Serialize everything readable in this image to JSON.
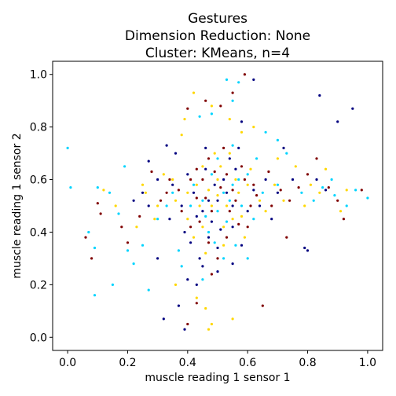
{
  "chart_data": {
    "type": "scatter",
    "title_lines": [
      "Gestures",
      "Dimension Reduction: None",
      "Cluster: KMeans, n=4"
    ],
    "xlabel": "muscle reading 1 sensor 1",
    "ylabel": "muscle reading 1 sensor 2",
    "xlim": [
      -0.05,
      1.05
    ],
    "ylim": [
      -0.05,
      1.05
    ],
    "xticks": [
      0.0,
      0.2,
      0.4,
      0.6,
      0.8,
      1.0
    ],
    "yticks": [
      0.0,
      0.2,
      0.4,
      0.6,
      0.8,
      1.0
    ],
    "xtick_labels": [
      "0.0",
      "0.2",
      "0.4",
      "0.6",
      "0.8",
      "1.0"
    ],
    "ytick_labels": [
      "0.0",
      "0.2",
      "0.4",
      "0.6",
      "0.8",
      "1.0"
    ],
    "grid": false,
    "legend": "none",
    "series": [
      {
        "color": "#000080",
        "points": [
          [
            0.5,
            0.52
          ],
          [
            0.45,
            0.48
          ],
          [
            0.42,
            0.55
          ],
          [
            0.55,
            0.5
          ],
          [
            0.48,
            0.44
          ],
          [
            0.4,
            0.62
          ],
          [
            0.52,
            0.6
          ],
          [
            0.6,
            0.48
          ],
          [
            0.38,
            0.5
          ],
          [
            0.47,
            0.38
          ],
          [
            0.55,
            0.42
          ],
          [
            0.35,
            0.58
          ],
          [
            0.62,
            0.56
          ],
          [
            0.44,
            0.3
          ],
          [
            0.5,
            0.25
          ],
          [
            0.43,
            0.2
          ],
          [
            0.3,
            0.3
          ],
          [
            0.32,
            0.07
          ],
          [
            0.39,
            0.03
          ],
          [
            0.84,
            0.92
          ],
          [
            0.95,
            0.87
          ],
          [
            0.9,
            0.82
          ],
          [
            0.72,
            0.72
          ],
          [
            0.8,
            0.33
          ],
          [
            0.79,
            0.34
          ],
          [
            0.3,
            0.6
          ],
          [
            0.25,
            0.55
          ],
          [
            0.7,
            0.55
          ],
          [
            0.75,
            0.6
          ],
          [
            0.36,
            0.7
          ],
          [
            0.46,
            0.72
          ],
          [
            0.57,
            0.72
          ],
          [
            0.58,
            0.35
          ],
          [
            0.41,
            0.36
          ],
          [
            0.53,
            0.55
          ],
          [
            0.49,
            0.58
          ],
          [
            0.47,
            0.52
          ],
          [
            0.43,
            0.46
          ],
          [
            0.56,
            0.64
          ],
          [
            0.34,
            0.45
          ],
          [
            0.64,
            0.5
          ],
          [
            0.27,
            0.5
          ],
          [
            0.66,
            0.6
          ],
          [
            0.68,
            0.45
          ],
          [
            0.51,
            0.41
          ],
          [
            0.45,
            0.27
          ],
          [
            0.4,
            0.22
          ],
          [
            0.37,
            0.12
          ],
          [
            0.58,
            0.82
          ],
          [
            0.62,
            0.98
          ],
          [
            0.33,
            0.73
          ],
          [
            0.27,
            0.67
          ],
          [
            0.22,
            0.52
          ],
          [
            0.86,
            0.56
          ],
          [
            0.83,
            0.6
          ],
          [
            0.55,
            0.28
          ],
          [
            0.5,
            0.34
          ],
          [
            0.46,
            0.64
          ],
          [
            0.54,
            0.68
          ],
          [
            0.39,
            0.4
          ]
        ]
      },
      {
        "color": "#00d4ff",
        "points": [
          [
            0.52,
            0.55
          ],
          [
            0.48,
            0.62
          ],
          [
            0.55,
            0.58
          ],
          [
            0.45,
            0.52
          ],
          [
            0.58,
            0.5
          ],
          [
            0.5,
            0.68
          ],
          [
            0.42,
            0.58
          ],
          [
            0.6,
            0.62
          ],
          [
            0.53,
            0.44
          ],
          [
            0.47,
            0.4
          ],
          [
            0.65,
            0.55
          ],
          [
            0.35,
            0.55
          ],
          [
            0.7,
            0.58
          ],
          [
            0.0,
            0.72
          ],
          [
            0.01,
            0.57
          ],
          [
            0.1,
            0.57
          ],
          [
            0.09,
            0.34
          ],
          [
            0.07,
            0.4
          ],
          [
            0.09,
            0.16
          ],
          [
            0.2,
            0.33
          ],
          [
            0.22,
            0.28
          ],
          [
            0.15,
            0.2
          ],
          [
            0.27,
            0.18
          ],
          [
            0.19,
            0.65
          ],
          [
            0.14,
            0.55
          ],
          [
            0.17,
            0.47
          ],
          [
            0.25,
            0.35
          ],
          [
            0.3,
            0.45
          ],
          [
            0.37,
            0.33
          ],
          [
            0.55,
            0.9
          ],
          [
            0.53,
            0.98
          ],
          [
            0.57,
            0.97
          ],
          [
            0.48,
            0.85
          ],
          [
            0.44,
            0.84
          ],
          [
            0.66,
            0.78
          ],
          [
            0.7,
            0.75
          ],
          [
            0.73,
            0.7
          ],
          [
            0.78,
            0.55
          ],
          [
            0.85,
            0.57
          ],
          [
            0.89,
            0.54
          ],
          [
            0.93,
            0.5
          ],
          [
            0.96,
            0.56
          ],
          [
            1.0,
            0.53
          ],
          [
            0.88,
            0.6
          ],
          [
            0.82,
            0.52
          ],
          [
            0.56,
            0.35
          ],
          [
            0.6,
            0.3
          ],
          [
            0.52,
            0.3
          ],
          [
            0.45,
            0.22
          ],
          [
            0.38,
            0.27
          ],
          [
            0.55,
            0.73
          ],
          [
            0.63,
            0.68
          ],
          [
            0.5,
            0.48
          ],
          [
            0.46,
            0.46
          ],
          [
            0.54,
            0.52
          ],
          [
            0.57,
            0.6
          ],
          [
            0.41,
            0.5
          ],
          [
            0.62,
            0.45
          ],
          [
            0.33,
            0.5
          ],
          [
            0.49,
            0.36
          ]
        ]
      },
      {
        "color": "#ffd700",
        "points": [
          [
            0.5,
            0.6
          ],
          [
            0.47,
            0.56
          ],
          [
            0.53,
            0.5
          ],
          [
            0.44,
            0.5
          ],
          [
            0.57,
            0.55
          ],
          [
            0.4,
            0.55
          ],
          [
            0.6,
            0.58
          ],
          [
            0.51,
            0.65
          ],
          [
            0.45,
            0.42
          ],
          [
            0.55,
            0.45
          ],
          [
            0.36,
            0.52
          ],
          [
            0.64,
            0.52
          ],
          [
            0.49,
            0.7
          ],
          [
            0.42,
            0.93
          ],
          [
            0.48,
            0.88
          ],
          [
            0.39,
            0.83
          ],
          [
            0.54,
            0.83
          ],
          [
            0.58,
            0.78
          ],
          [
            0.62,
            0.8
          ],
          [
            0.38,
            0.77
          ],
          [
            0.36,
            0.2
          ],
          [
            0.43,
            0.15
          ],
          [
            0.46,
            0.11
          ],
          [
            0.48,
            0.05
          ],
          [
            0.55,
            0.07
          ],
          [
            0.47,
            0.03
          ],
          [
            0.29,
            0.45
          ],
          [
            0.26,
            0.55
          ],
          [
            0.32,
            0.62
          ],
          [
            0.12,
            0.56
          ],
          [
            0.16,
            0.5
          ],
          [
            0.23,
            0.42
          ],
          [
            0.86,
            0.64
          ],
          [
            0.93,
            0.56
          ],
          [
            0.91,
            0.48
          ],
          [
            0.84,
            0.55
          ],
          [
            0.79,
            0.5
          ],
          [
            0.72,
            0.52
          ],
          [
            0.76,
            0.65
          ],
          [
            0.7,
            0.68
          ],
          [
            0.46,
            0.32
          ],
          [
            0.52,
            0.35
          ],
          [
            0.42,
            0.38
          ],
          [
            0.59,
            0.38
          ],
          [
            0.5,
            0.54
          ],
          [
            0.48,
            0.5
          ],
          [
            0.56,
            0.6
          ],
          [
            0.43,
            0.58
          ],
          [
            0.61,
            0.64
          ],
          [
            0.35,
            0.6
          ],
          [
            0.66,
            0.48
          ],
          [
            0.52,
            0.42
          ],
          [
            0.45,
            0.65
          ],
          [
            0.54,
            0.7
          ],
          [
            0.4,
            0.45
          ],
          [
            0.69,
            0.58
          ],
          [
            0.3,
            0.5
          ],
          [
            0.58,
            0.46
          ],
          [
            0.25,
            0.58
          ],
          [
            0.81,
            0.58
          ]
        ]
      },
      {
        "color": "#800000",
        "points": [
          [
            0.51,
            0.57
          ],
          [
            0.46,
            0.53
          ],
          [
            0.54,
            0.48
          ],
          [
            0.43,
            0.53
          ],
          [
            0.56,
            0.52
          ],
          [
            0.41,
            0.6
          ],
          [
            0.59,
            0.6
          ],
          [
            0.49,
            0.63
          ],
          [
            0.44,
            0.44
          ],
          [
            0.57,
            0.43
          ],
          [
            0.37,
            0.56
          ],
          [
            0.63,
            0.54
          ],
          [
            0.52,
            0.72
          ],
          [
            0.59,
            1.0
          ],
          [
            0.55,
            0.93
          ],
          [
            0.46,
            0.9
          ],
          [
            0.51,
            0.88
          ],
          [
            0.08,
            0.3
          ],
          [
            0.06,
            0.38
          ],
          [
            0.11,
            0.47
          ],
          [
            0.1,
            0.51
          ],
          [
            0.2,
            0.36
          ],
          [
            0.18,
            0.42
          ],
          [
            0.24,
            0.46
          ],
          [
            0.28,
            0.63
          ],
          [
            0.33,
            0.55
          ],
          [
            0.4,
            0.87
          ],
          [
            0.68,
            0.5
          ],
          [
            0.71,
            0.56
          ],
          [
            0.74,
            0.52
          ],
          [
            0.77,
            0.57
          ],
          [
            0.8,
            0.62
          ],
          [
            0.83,
            0.68
          ],
          [
            0.87,
            0.57
          ],
          [
            0.9,
            0.52
          ],
          [
            0.92,
            0.45
          ],
          [
            0.98,
            0.56
          ],
          [
            0.73,
            0.38
          ],
          [
            0.65,
            0.12
          ],
          [
            0.43,
            0.13
          ],
          [
            0.4,
            0.05
          ],
          [
            0.48,
            0.24
          ],
          [
            0.5,
            0.3
          ],
          [
            0.47,
            0.36
          ],
          [
            0.53,
            0.38
          ],
          [
            0.41,
            0.42
          ],
          [
            0.6,
            0.42
          ],
          [
            0.55,
            0.56
          ],
          [
            0.48,
            0.48
          ],
          [
            0.45,
            0.6
          ],
          [
            0.58,
            0.65
          ],
          [
            0.38,
            0.48
          ],
          [
            0.62,
            0.58
          ],
          [
            0.53,
            0.62
          ],
          [
            0.34,
            0.6
          ],
          [
            0.67,
            0.63
          ],
          [
            0.47,
            0.68
          ],
          [
            0.43,
            0.64
          ],
          [
            0.61,
            0.5
          ],
          [
            0.31,
            0.52
          ]
        ]
      }
    ]
  }
}
